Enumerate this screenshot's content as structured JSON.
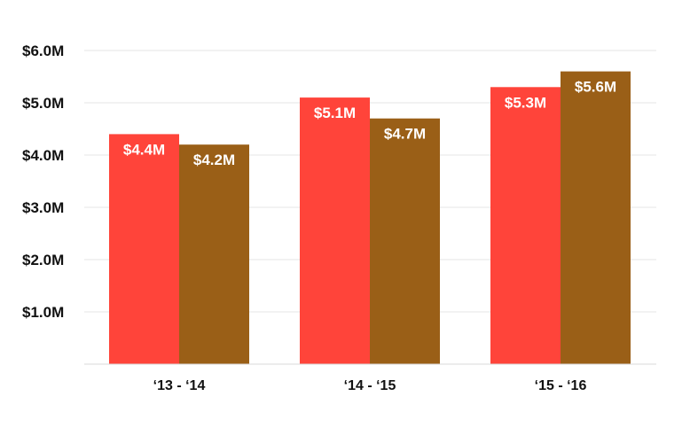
{
  "chart_data": {
    "type": "bar",
    "title": "",
    "xlabel": "",
    "ylabel": "",
    "categories": [
      "‘13 - ‘14",
      "‘14 - ‘15",
      "‘15 - ‘16"
    ],
    "series": [
      {
        "values": [
          4.4,
          5.1,
          5.3
        ],
        "labels": [
          "$4.4M",
          "$5.1M",
          "$5.3M"
        ],
        "color": "#ff443a"
      },
      {
        "values": [
          4.2,
          4.7,
          5.6
        ],
        "labels": [
          "$4.2M",
          "$4.7M",
          "$5.6M"
        ],
        "color": "#9a5f17"
      }
    ],
    "ylim": [
      0,
      6
    ],
    "y_ticks": [
      1,
      2,
      3,
      4,
      5,
      6
    ],
    "y_tick_labels": [
      "$1.0M",
      "$2.0M",
      "$3.0M",
      "$4.0M",
      "$5.0M",
      "$6.0M"
    ],
    "grid": true,
    "legend": "none"
  }
}
